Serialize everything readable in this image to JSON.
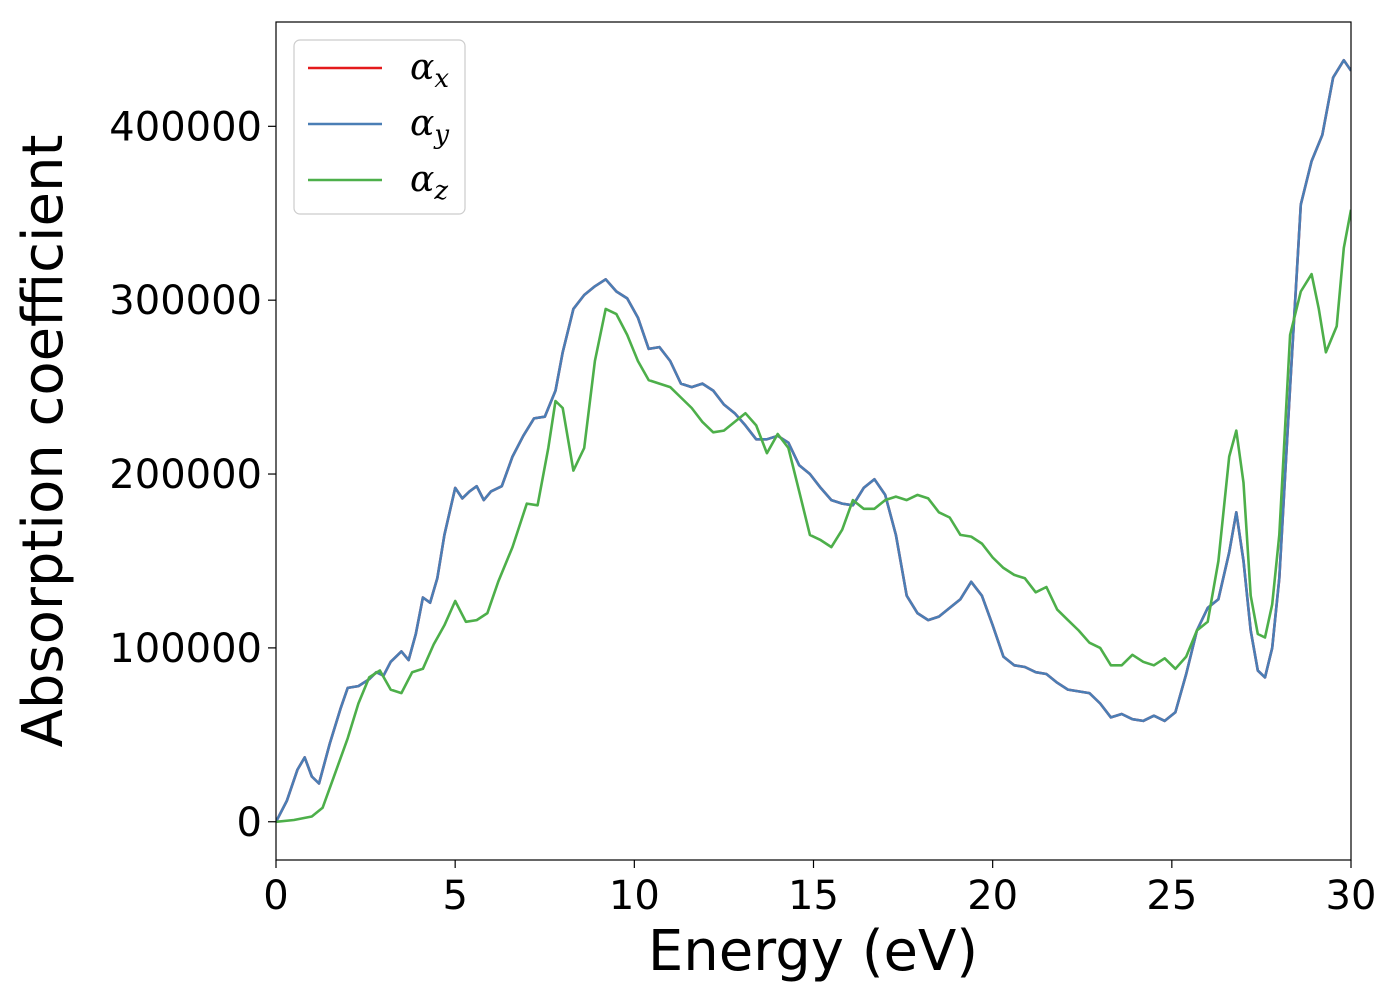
{
  "chart_data": {
    "type": "line",
    "xlabel": "Energy (eV)",
    "ylabel": "Absorption coefficient",
    "xlim": [
      0,
      30
    ],
    "ylim": [
      -22000,
      460000
    ],
    "xticks": [
      0,
      5,
      10,
      15,
      20,
      25,
      30
    ],
    "yticks": [
      0,
      100000,
      200000,
      300000,
      400000
    ],
    "grid": false,
    "legend_position": "top-left",
    "series": [
      {
        "name": "α",
        "subscript": "x",
        "color": "#e41a1c",
        "x": [
          0,
          0.3,
          0.6,
          0.8,
          1.0,
          1.2,
          1.5,
          1.8,
          2.0,
          2.3,
          2.6,
          2.8,
          3.0,
          3.2,
          3.5,
          3.7,
          3.9,
          4.1,
          4.3,
          4.5,
          4.7,
          5.0,
          5.2,
          5.4,
          5.6,
          5.8,
          6.0,
          6.3,
          6.6,
          6.9,
          7.2,
          7.5,
          7.8,
          8.0,
          8.3,
          8.6,
          8.9,
          9.2,
          9.5,
          9.8,
          10.1,
          10.4,
          10.7,
          11.0,
          11.3,
          11.6,
          11.9,
          12.2,
          12.5,
          12.8,
          13.1,
          13.4,
          13.7,
          14.0,
          14.3,
          14.6,
          14.9,
          15.2,
          15.5,
          15.8,
          16.1,
          16.4,
          16.7,
          17.0,
          17.3,
          17.6,
          17.9,
          18.2,
          18.5,
          18.8,
          19.1,
          19.4,
          19.7,
          20.0,
          20.3,
          20.6,
          20.9,
          21.2,
          21.5,
          21.8,
          22.1,
          22.4,
          22.7,
          23.0,
          23.3,
          23.6,
          23.9,
          24.2,
          24.5,
          24.8,
          25.1,
          25.4,
          25.7,
          26.0,
          26.3,
          26.6,
          26.8,
          27.0,
          27.2,
          27.4,
          27.6,
          27.8,
          28.0,
          28.3,
          28.6,
          28.9,
          29.2,
          29.5,
          29.8,
          30.0
        ],
        "y": [
          0,
          12000,
          30000,
          37000,
          26000,
          22000,
          45000,
          65000,
          77000,
          78000,
          82000,
          86000,
          84000,
          92000,
          98000,
          93000,
          108000,
          129000,
          126000,
          140000,
          165000,
          192000,
          186000,
          190000,
          193000,
          185000,
          190000,
          193000,
          210000,
          222000,
          232000,
          233000,
          248000,
          270000,
          295000,
          303000,
          308000,
          312000,
          305000,
          301000,
          290000,
          272000,
          273000,
          265000,
          252000,
          250000,
          252000,
          248000,
          240000,
          235000,
          228000,
          220000,
          220000,
          222000,
          218000,
          205000,
          200000,
          192000,
          185000,
          183000,
          182000,
          192000,
          197000,
          188000,
          165000,
          130000,
          120000,
          116000,
          118000,
          123000,
          128000,
          138000,
          130000,
          113000,
          95000,
          90000,
          89000,
          86000,
          85000,
          80000,
          76000,
          75000,
          74000,
          68000,
          60000,
          62000,
          59000,
          58000,
          61000,
          58000,
          63000,
          85000,
          110000,
          123000,
          128000,
          155000,
          178000,
          150000,
          110000,
          87000,
          83000,
          100000,
          140000,
          250000,
          355000,
          380000,
          395000,
          428000,
          438000,
          432000
        ]
      },
      {
        "name": "α",
        "subscript": "y",
        "color": "#4a7eb5",
        "x": [
          0,
          0.3,
          0.6,
          0.8,
          1.0,
          1.2,
          1.5,
          1.8,
          2.0,
          2.3,
          2.6,
          2.8,
          3.0,
          3.2,
          3.5,
          3.7,
          3.9,
          4.1,
          4.3,
          4.5,
          4.7,
          5.0,
          5.2,
          5.4,
          5.6,
          5.8,
          6.0,
          6.3,
          6.6,
          6.9,
          7.2,
          7.5,
          7.8,
          8.0,
          8.3,
          8.6,
          8.9,
          9.2,
          9.5,
          9.8,
          10.1,
          10.4,
          10.7,
          11.0,
          11.3,
          11.6,
          11.9,
          12.2,
          12.5,
          12.8,
          13.1,
          13.4,
          13.7,
          14.0,
          14.3,
          14.6,
          14.9,
          15.2,
          15.5,
          15.8,
          16.1,
          16.4,
          16.7,
          17.0,
          17.3,
          17.6,
          17.9,
          18.2,
          18.5,
          18.8,
          19.1,
          19.4,
          19.7,
          20.0,
          20.3,
          20.6,
          20.9,
          21.2,
          21.5,
          21.8,
          22.1,
          22.4,
          22.7,
          23.0,
          23.3,
          23.6,
          23.9,
          24.2,
          24.5,
          24.8,
          25.1,
          25.4,
          25.7,
          26.0,
          26.3,
          26.6,
          26.8,
          27.0,
          27.2,
          27.4,
          27.6,
          27.8,
          28.0,
          28.3,
          28.6,
          28.9,
          29.2,
          29.5,
          29.8,
          30.0
        ],
        "y": [
          0,
          12000,
          30000,
          37000,
          26000,
          22000,
          45000,
          65000,
          77000,
          78000,
          82000,
          86000,
          84000,
          92000,
          98000,
          93000,
          108000,
          129000,
          126000,
          140000,
          165000,
          192000,
          186000,
          190000,
          193000,
          185000,
          190000,
          193000,
          210000,
          222000,
          232000,
          233000,
          248000,
          270000,
          295000,
          303000,
          308000,
          312000,
          305000,
          301000,
          290000,
          272000,
          273000,
          265000,
          252000,
          250000,
          252000,
          248000,
          240000,
          235000,
          228000,
          220000,
          220000,
          222000,
          218000,
          205000,
          200000,
          192000,
          185000,
          183000,
          182000,
          192000,
          197000,
          188000,
          165000,
          130000,
          120000,
          116000,
          118000,
          123000,
          128000,
          138000,
          130000,
          113000,
          95000,
          90000,
          89000,
          86000,
          85000,
          80000,
          76000,
          75000,
          74000,
          68000,
          60000,
          62000,
          59000,
          58000,
          61000,
          58000,
          63000,
          85000,
          110000,
          123000,
          128000,
          155000,
          178000,
          150000,
          110000,
          87000,
          83000,
          100000,
          140000,
          250000,
          355000,
          380000,
          395000,
          428000,
          438000,
          432000
        ]
      },
      {
        "name": "α",
        "subscript": "z",
        "color": "#4daf4a",
        "x": [
          0,
          0.5,
          1.0,
          1.3,
          1.6,
          2.0,
          2.3,
          2.6,
          2.9,
          3.2,
          3.5,
          3.8,
          4.1,
          4.4,
          4.7,
          5.0,
          5.3,
          5.6,
          5.9,
          6.2,
          6.6,
          7.0,
          7.3,
          7.6,
          7.8,
          8.0,
          8.3,
          8.6,
          8.9,
          9.2,
          9.5,
          9.8,
          10.1,
          10.4,
          10.7,
          11.0,
          11.3,
          11.6,
          11.9,
          12.2,
          12.5,
          12.8,
          13.1,
          13.4,
          13.7,
          14.0,
          14.3,
          14.6,
          14.9,
          15.2,
          15.5,
          15.8,
          16.1,
          16.4,
          16.7,
          17.0,
          17.3,
          17.6,
          17.9,
          18.2,
          18.5,
          18.8,
          19.1,
          19.4,
          19.7,
          20.0,
          20.3,
          20.6,
          20.9,
          21.2,
          21.5,
          21.8,
          22.1,
          22.4,
          22.7,
          23.0,
          23.3,
          23.6,
          23.9,
          24.2,
          24.5,
          24.8,
          25.1,
          25.4,
          25.7,
          26.0,
          26.3,
          26.6,
          26.8,
          27.0,
          27.2,
          27.4,
          27.6,
          27.8,
          28.0,
          28.3,
          28.6,
          28.9,
          29.1,
          29.3,
          29.6,
          29.8,
          30.0
        ],
        "y": [
          0,
          1000,
          3000,
          8000,
          25000,
          48000,
          68000,
          83000,
          87000,
          76000,
          74000,
          86000,
          88000,
          102000,
          113000,
          127000,
          115000,
          116000,
          120000,
          138000,
          158000,
          183000,
          182000,
          215000,
          242000,
          238000,
          202000,
          215000,
          265000,
          295000,
          292000,
          280000,
          265000,
          254000,
          252000,
          250000,
          244000,
          238000,
          230000,
          224000,
          225000,
          230000,
          235000,
          228000,
          212000,
          223000,
          215000,
          190000,
          165000,
          162000,
          158000,
          168000,
          185000,
          180000,
          180000,
          185000,
          187000,
          185000,
          188000,
          186000,
          178000,
          175000,
          165000,
          164000,
          160000,
          152000,
          146000,
          142000,
          140000,
          132000,
          135000,
          122000,
          116000,
          110000,
          103000,
          100000,
          90000,
          90000,
          96000,
          92000,
          90000,
          94000,
          88000,
          95000,
          110000,
          115000,
          150000,
          210000,
          225000,
          195000,
          130000,
          108000,
          106000,
          125000,
          165000,
          280000,
          305000,
          315000,
          295000,
          270000,
          285000,
          330000,
          352000
        ]
      }
    ]
  }
}
